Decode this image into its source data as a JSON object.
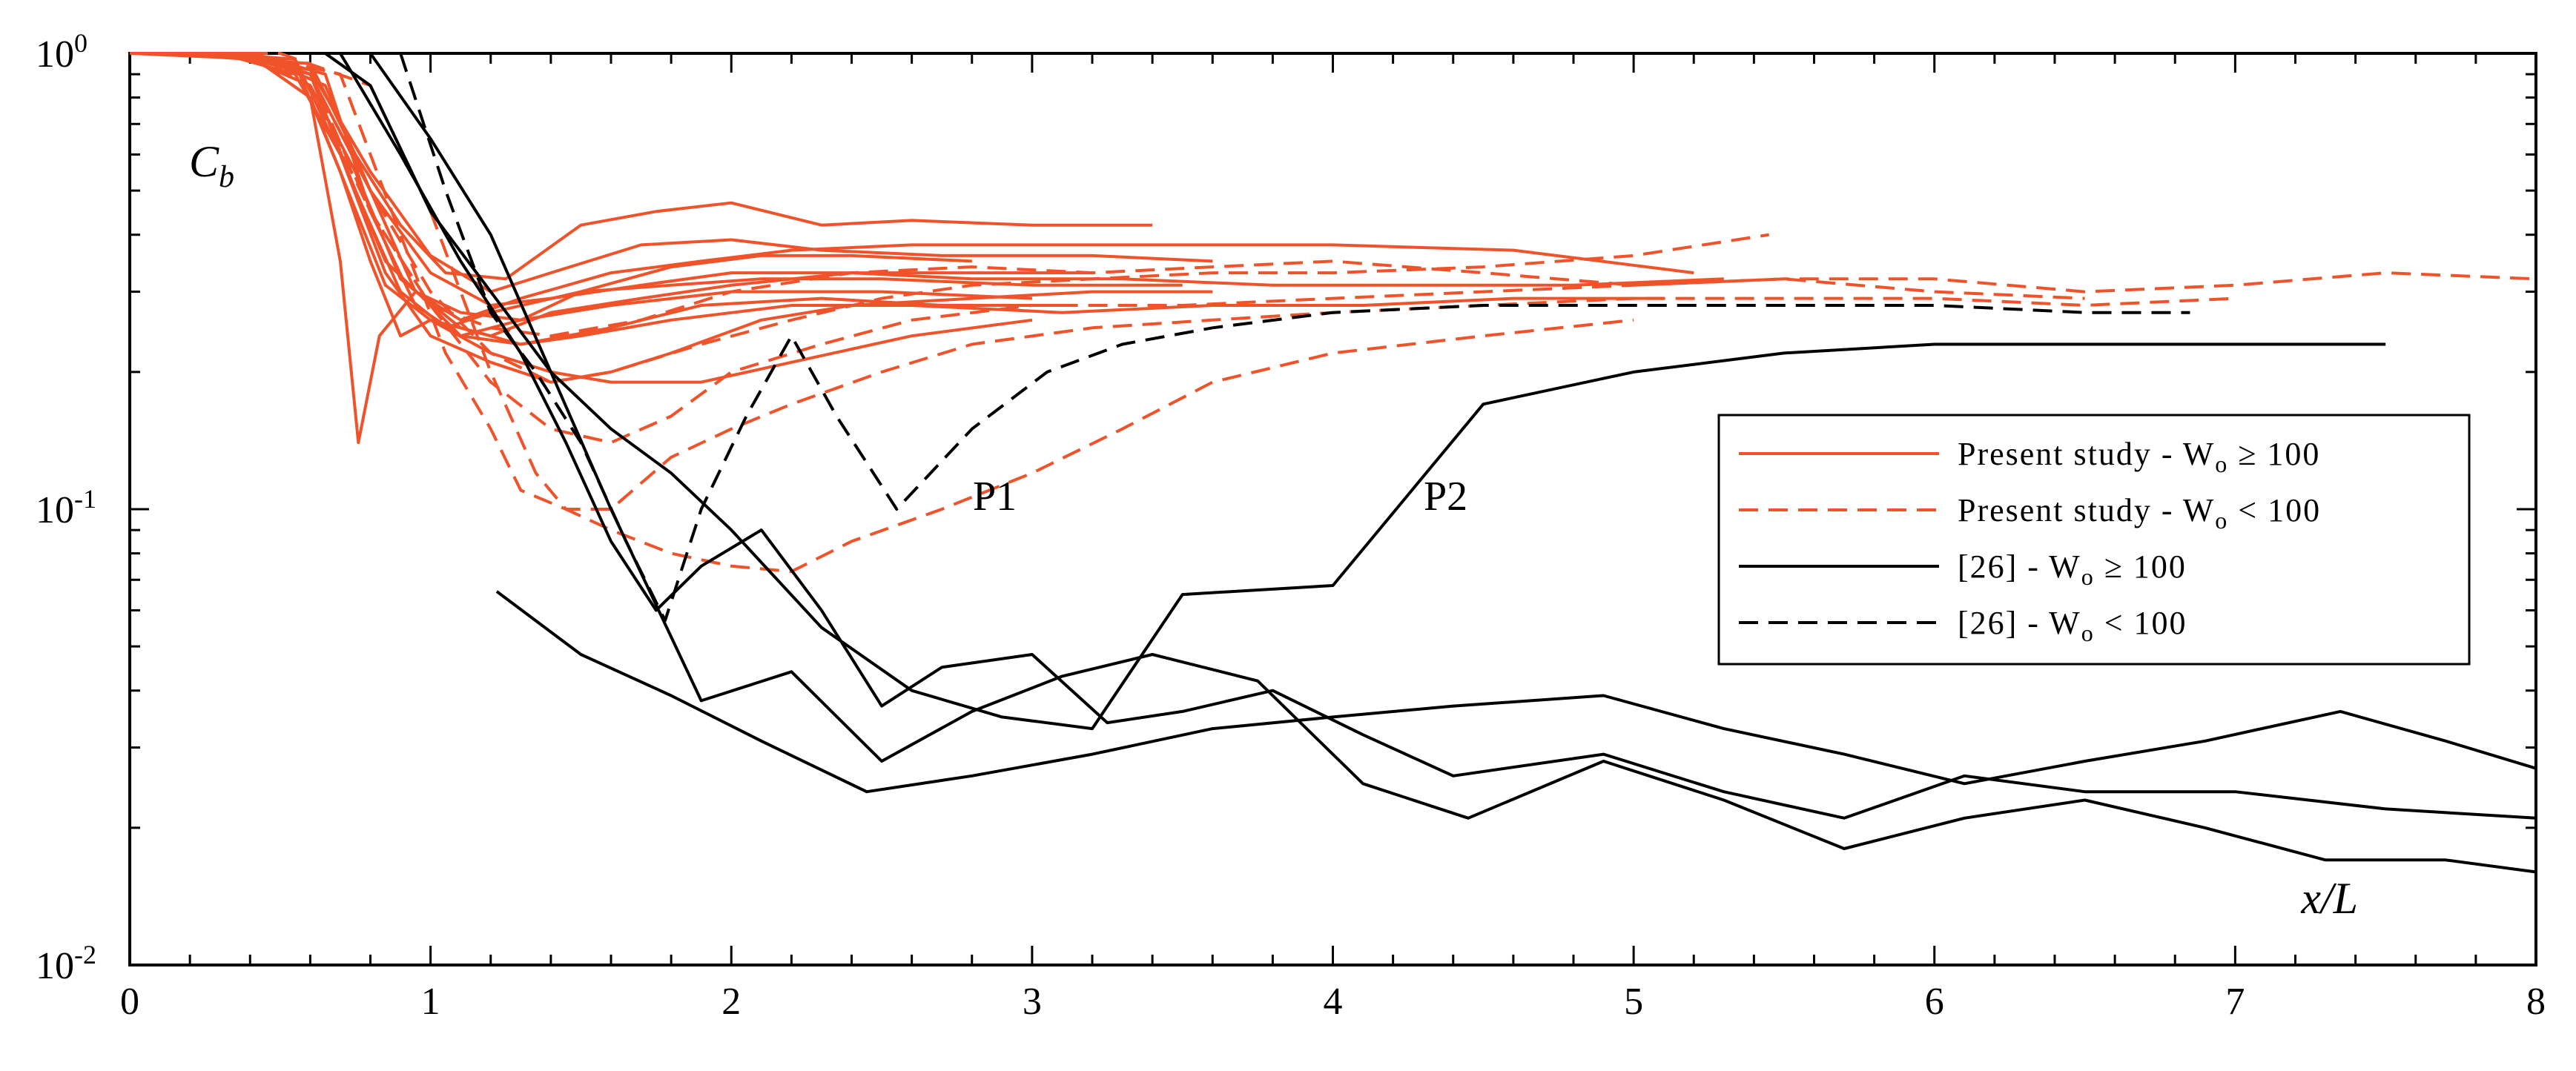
{
  "chart_data": {
    "type": "line",
    "xlabel": "x/L",
    "ylabel": "C_b",
    "ylabel_main": "C",
    "ylabel_sub": "b",
    "xlim": [
      0,
      8
    ],
    "ylim": [
      0.01,
      1
    ],
    "y_scale": "log",
    "x_ticks": [
      "0",
      "1",
      "2",
      "3",
      "4",
      "5",
      "6",
      "7",
      "8"
    ],
    "y_ticks": [
      {
        "value": 1,
        "base": "10",
        "exp": "0"
      },
      {
        "value": 0.1,
        "base": "10",
        "exp": "-1"
      },
      {
        "value": 0.01,
        "base": "10",
        "exp": "-2"
      }
    ],
    "legend_position": "center-right",
    "legend": [
      {
        "label": "Present study - W",
        "sub": "o",
        "rel": "≥",
        "val": "100",
        "color": "#F0522A",
        "dash": "solid"
      },
      {
        "label": "Present study - W",
        "sub": "o",
        "rel": "<",
        "val": "100",
        "color": "#F0522A",
        "dash": "dashed"
      },
      {
        "label": "[26] - W",
        "sub": "o",
        "rel": "≥",
        "val": "100",
        "color": "#000000",
        "dash": "solid"
      },
      {
        "label": "[26] - W",
        "sub": "o",
        "rel": "<",
        "val": "100",
        "color": "#000000",
        "dash": "dashed"
      }
    ],
    "annotations": [
      {
        "text": "P1",
        "x": 2.8,
        "y": 0.105
      },
      {
        "text": "P2",
        "x": 4.4,
        "y": 0.105
      }
    ],
    "series": [
      {
        "group": "Present study Wo>=100",
        "color": "#F0522A",
        "dash": "solid",
        "x": [
          0,
          0.3,
          0.6,
          0.75,
          0.9,
          1.05,
          1.25,
          1.5,
          1.75,
          2.0,
          2.3,
          2.6,
          3.0,
          3.4
        ],
        "y": [
          1,
          0.98,
          0.95,
          0.6,
          0.42,
          0.33,
          0.32,
          0.42,
          0.45,
          0.47,
          0.42,
          0.43,
          0.42,
          0.42
        ]
      },
      {
        "group": "Present study Wo>=100",
        "color": "#F0522A",
        "dash": "solid",
        "x": [
          0,
          0.3,
          0.6,
          0.8,
          1.0,
          1.2,
          1.4,
          1.7,
          2.0,
          2.3,
          2.7,
          3.2,
          3.6
        ],
        "y": [
          1,
          1,
          0.92,
          0.55,
          0.36,
          0.3,
          0.33,
          0.38,
          0.39,
          0.37,
          0.36,
          0.36,
          0.35
        ]
      },
      {
        "group": "Present study Wo>=100",
        "color": "#F0522A",
        "dash": "solid",
        "x": [
          0,
          0.4,
          0.65,
          0.8,
          0.95,
          1.1,
          1.3,
          1.6,
          1.9,
          2.2,
          2.6,
          3.0,
          3.5,
          4.0,
          4.6,
          5.2
        ],
        "y": [
          1,
          1,
          0.85,
          0.5,
          0.3,
          0.26,
          0.29,
          0.33,
          0.35,
          0.37,
          0.38,
          0.38,
          0.38,
          0.38,
          0.37,
          0.33
        ]
      },
      {
        "group": "Present study Wo>=100",
        "color": "#F0522A",
        "dash": "solid",
        "x": [
          0,
          0.35,
          0.6,
          0.75,
          0.9,
          1.05,
          1.2,
          1.5,
          1.8,
          2.1,
          2.5,
          3.0,
          3.5
        ],
        "y": [
          1,
          0.99,
          0.9,
          0.5,
          0.3,
          0.25,
          0.27,
          0.3,
          0.31,
          0.32,
          0.32,
          0.31,
          0.31
        ]
      },
      {
        "group": "Present study Wo>=100",
        "color": "#F0522A",
        "dash": "solid",
        "x": [
          0,
          0.4,
          0.6,
          0.7,
          0.8,
          0.9,
          1.0,
          1.2,
          1.4,
          1.7,
          2.0,
          2.4,
          2.8,
          3.2
        ],
        "y": [
          1,
          0.99,
          0.8,
          0.55,
          0.35,
          0.24,
          0.26,
          0.24,
          0.27,
          0.29,
          0.31,
          0.33,
          0.33,
          0.33
        ]
      },
      {
        "group": "Present study Wo>=100",
        "color": "#F0522A",
        "dash": "solid",
        "x": [
          0,
          0.4,
          0.6,
          0.7,
          0.76,
          0.83,
          0.95,
          1.1,
          1.3,
          1.6,
          2.0,
          2.5,
          3.0
        ],
        "y": [
          1,
          0.99,
          0.8,
          0.35,
          0.14,
          0.24,
          0.3,
          0.27,
          0.26,
          0.28,
          0.3,
          0.3,
          0.29
        ]
      },
      {
        "group": "Present study Wo>=100",
        "color": "#F0522A",
        "dash": "solid",
        "x": [
          0,
          0.3,
          0.55,
          0.7,
          0.85,
          1.0,
          1.2,
          1.4,
          1.6,
          1.8,
          2.1,
          2.4,
          2.8,
          3.2,
          3.6
        ],
        "y": [
          1,
          1,
          0.97,
          0.6,
          0.33,
          0.24,
          0.21,
          0.19,
          0.2,
          0.22,
          0.26,
          0.28,
          0.29,
          0.3,
          0.3
        ]
      },
      {
        "group": "Present study Wo>=100",
        "color": "#F0522A",
        "dash": "solid",
        "x": [
          0,
          0.3,
          0.55,
          0.7,
          0.85,
          1.0,
          1.2,
          1.4,
          1.6,
          1.9,
          2.2,
          2.6,
          3.0
        ],
        "y": [
          1,
          1,
          0.95,
          0.55,
          0.31,
          0.26,
          0.22,
          0.2,
          0.19,
          0.19,
          0.21,
          0.24,
          0.26
        ]
      },
      {
        "group": "Present study Wo>=100",
        "color": "#F0522A",
        "dash": "solid",
        "x": [
          0,
          0.4,
          0.65,
          0.8,
          0.95,
          1.1,
          1.3,
          1.5,
          1.8,
          2.2,
          2.6,
          3.1,
          3.6,
          4.1,
          4.6,
          5.1
        ],
        "y": [
          1,
          1,
          0.9,
          0.45,
          0.28,
          0.24,
          0.23,
          0.24,
          0.26,
          0.28,
          0.28,
          0.27,
          0.28,
          0.28,
          0.29,
          0.29
        ]
      },
      {
        "group": "Present study Wo>=100",
        "color": "#F0522A",
        "dash": "solid",
        "x": [
          0,
          0.4,
          0.6,
          0.8,
          1.0,
          1.2,
          1.4,
          1.7,
          2.0,
          2.4,
          2.8,
          3.3,
          3.8,
          4.3,
          4.8,
          5.3
        ],
        "y": [
          1,
          1,
          0.9,
          0.5,
          0.33,
          0.28,
          0.29,
          0.31,
          0.33,
          0.33,
          0.32,
          0.32,
          0.31,
          0.31,
          0.31,
          0.32
        ]
      },
      {
        "group": "Present study Wo>=100",
        "color": "#F0522A",
        "dash": "solid",
        "x": [
          0,
          0.3,
          0.55,
          0.7,
          0.85,
          1.0,
          1.1,
          1.3,
          1.5,
          1.8,
          2.1,
          2.4,
          2.8
        ],
        "y": [
          1,
          1,
          0.9,
          0.6,
          0.35,
          0.28,
          0.24,
          0.26,
          0.3,
          0.34,
          0.36,
          0.36,
          0.35
        ]
      },
      {
        "group": "Present study Wo>=100",
        "color": "#F0522A",
        "dash": "solid",
        "x": [
          0,
          0.35,
          0.6,
          0.75,
          0.9,
          1.1,
          1.3,
          1.6,
          1.9,
          2.3,
          2.7,
          3.1
        ],
        "y": [
          1,
          1,
          0.85,
          0.55,
          0.32,
          0.25,
          0.23,
          0.25,
          0.28,
          0.29,
          0.28,
          0.28
        ]
      },
      {
        "group": "Present study Wo<100",
        "color": "#F0522A",
        "dash": "dashed",
        "x": [
          0,
          0.4,
          0.6,
          0.8,
          1.0,
          1.2,
          1.4,
          1.6,
          1.8,
          2.0,
          2.3,
          2.6,
          3.0,
          3.5,
          4.0,
          4.5,
          5.0,
          5.5,
          6.0,
          6.5,
          7.0,
          7.5,
          8.0
        ],
        "y": [
          1,
          1,
          0.9,
          0.45,
          0.28,
          0.19,
          0.15,
          0.14,
          0.16,
          0.2,
          0.23,
          0.26,
          0.28,
          0.28,
          0.29,
          0.3,
          0.31,
          0.32,
          0.32,
          0.3,
          0.31,
          0.33,
          0.32
        ]
      },
      {
        "group": "Present study Wo<100",
        "color": "#F0522A",
        "dash": "dashed",
        "x": [
          0,
          0.4,
          0.7,
          0.9,
          1.05,
          1.2,
          1.3,
          1.45,
          1.6,
          1.8,
          2.0,
          2.2,
          2.5,
          2.8,
          3.2,
          3.6,
          4.0,
          4.5,
          5.0,
          5.5,
          6.0,
          6.5,
          7.0
        ],
        "y": [
          1,
          1,
          0.9,
          0.4,
          0.22,
          0.15,
          0.11,
          0.1,
          0.1,
          0.13,
          0.15,
          0.17,
          0.2,
          0.23,
          0.25,
          0.26,
          0.27,
          0.28,
          0.29,
          0.29,
          0.29,
          0.28,
          0.29
        ]
      },
      {
        "group": "Present study Wo<100",
        "color": "#F0522A",
        "dash": "dashed",
        "x": [
          0,
          0.5,
          0.8,
          1.0,
          1.2,
          1.35,
          1.45,
          1.6,
          1.8,
          2.0,
          2.2,
          2.4,
          2.7,
          3.0,
          3.3,
          3.6,
          4.0,
          4.5,
          5.0
        ],
        "y": [
          1,
          1,
          0.85,
          0.45,
          0.2,
          0.12,
          0.1,
          0.09,
          0.08,
          0.075,
          0.073,
          0.085,
          0.1,
          0.12,
          0.15,
          0.19,
          0.22,
          0.24,
          0.26
        ]
      },
      {
        "group": "Present study Wo<100",
        "color": "#F0522A",
        "dash": "dashed",
        "x": [
          0,
          0.4,
          0.6,
          0.8,
          1.0,
          1.2,
          1.4,
          1.6,
          1.9,
          2.2,
          2.5,
          2.8,
          3.2,
          3.6,
          4.0,
          4.5,
          5.0,
          5.45
        ],
        "y": [
          1,
          1,
          0.9,
          0.5,
          0.3,
          0.22,
          0.19,
          0.2,
          0.23,
          0.26,
          0.29,
          0.31,
          0.32,
          0.33,
          0.33,
          0.34,
          0.36,
          0.4
        ]
      },
      {
        "group": "Present study Wo<100",
        "color": "#F0522A",
        "dash": "dashed",
        "x": [
          0,
          0.4,
          0.6,
          0.8,
          1.0,
          1.2,
          1.4,
          1.7,
          2.0,
          2.4,
          2.8,
          3.2,
          3.6,
          4.0,
          4.5,
          5.0,
          5.5,
          6.0,
          6.5
        ],
        "y": [
          1,
          1,
          0.85,
          0.45,
          0.28,
          0.25,
          0.24,
          0.26,
          0.3,
          0.33,
          0.34,
          0.33,
          0.34,
          0.35,
          0.33,
          0.31,
          0.32,
          0.3,
          0.29
        ]
      },
      {
        "group": "[26] Wo>=100",
        "color": "#000000",
        "dash": "solid",
        "x": [
          0.65,
          0.8,
          1.0,
          1.2,
          1.4,
          1.6,
          1.8,
          2.0,
          2.3,
          2.6,
          2.9,
          3.2,
          3.5,
          4.0,
          4.5,
          5.0,
          5.5,
          6.0,
          6.5,
          7.0,
          7.5
        ],
        "y": [
          1,
          0.85,
          0.45,
          0.3,
          0.2,
          0.15,
          0.12,
          0.09,
          0.055,
          0.04,
          0.035,
          0.033,
          0.065,
          0.068,
          0.17,
          0.2,
          0.22,
          0.23,
          0.23,
          0.23,
          0.23
        ]
      },
      {
        "group": "[26] Wo>=100",
        "color": "#000000",
        "dash": "solid",
        "x": [
          0.7,
          0.9,
          1.1,
          1.3,
          1.45,
          1.6,
          1.75,
          1.9,
          2.1,
          2.3,
          2.5,
          2.7,
          3.0,
          3.25,
          3.5,
          3.8,
          4.1,
          4.4,
          4.9,
          5.3,
          5.7,
          6.1,
          6.5,
          7.0,
          7.5,
          8.0
        ],
        "y": [
          1,
          0.6,
          0.35,
          0.22,
          0.14,
          0.085,
          0.06,
          0.075,
          0.09,
          0.06,
          0.037,
          0.045,
          0.048,
          0.034,
          0.036,
          0.04,
          0.032,
          0.026,
          0.029,
          0.024,
          0.021,
          0.026,
          0.024,
          0.024,
          0.022,
          0.021
        ]
      },
      {
        "group": "[26] Wo>=100",
        "color": "#000000",
        "dash": "solid",
        "x": [
          0.8,
          1.0,
          1.2,
          1.4,
          1.6,
          1.9,
          2.2,
          2.5,
          2.8,
          3.1,
          3.4,
          3.75,
          4.1,
          4.45,
          4.9,
          5.3,
          5.7,
          6.1,
          6.5,
          6.9,
          7.3,
          7.7,
          8.0
        ],
        "y": [
          1,
          0.65,
          0.4,
          0.2,
          0.1,
          0.038,
          0.044,
          0.028,
          0.036,
          0.043,
          0.048,
          0.042,
          0.025,
          0.021,
          0.028,
          0.023,
          0.018,
          0.021,
          0.023,
          0.02,
          0.017,
          0.017,
          0.016
        ]
      },
      {
        "group": "[26] Wo>=100",
        "color": "#000000",
        "dash": "solid",
        "x": [
          1.22,
          1.5,
          1.8,
          2.1,
          2.45,
          2.8,
          3.2,
          3.6,
          4.0,
          4.4,
          4.9,
          5.3,
          5.7,
          6.1,
          6.5,
          6.9,
          7.35,
          7.7,
          8.0
        ],
        "y": [
          0.066,
          0.048,
          0.039,
          0.031,
          0.024,
          0.026,
          0.029,
          0.033,
          0.035,
          0.037,
          0.039,
          0.033,
          0.029,
          0.025,
          0.028,
          0.031,
          0.036,
          0.031,
          0.027
        ]
      },
      {
        "group": "[26] Wo<100",
        "color": "#000000",
        "dash": "dashed",
        "x": [
          0.9,
          1.05,
          1.2,
          1.35,
          1.5,
          1.65,
          1.78,
          1.9,
          2.05,
          2.2,
          2.35,
          2.55,
          2.8,
          3.05,
          3.3,
          3.6,
          4.0,
          4.5,
          5.0,
          5.5,
          6.0,
          6.5,
          6.85
        ],
        "y": [
          1,
          0.5,
          0.27,
          0.2,
          0.14,
          0.085,
          0.057,
          0.1,
          0.16,
          0.24,
          0.16,
          0.1,
          0.15,
          0.2,
          0.23,
          0.25,
          0.27,
          0.28,
          0.28,
          0.28,
          0.28,
          0.27,
          0.27
        ]
      }
    ]
  }
}
